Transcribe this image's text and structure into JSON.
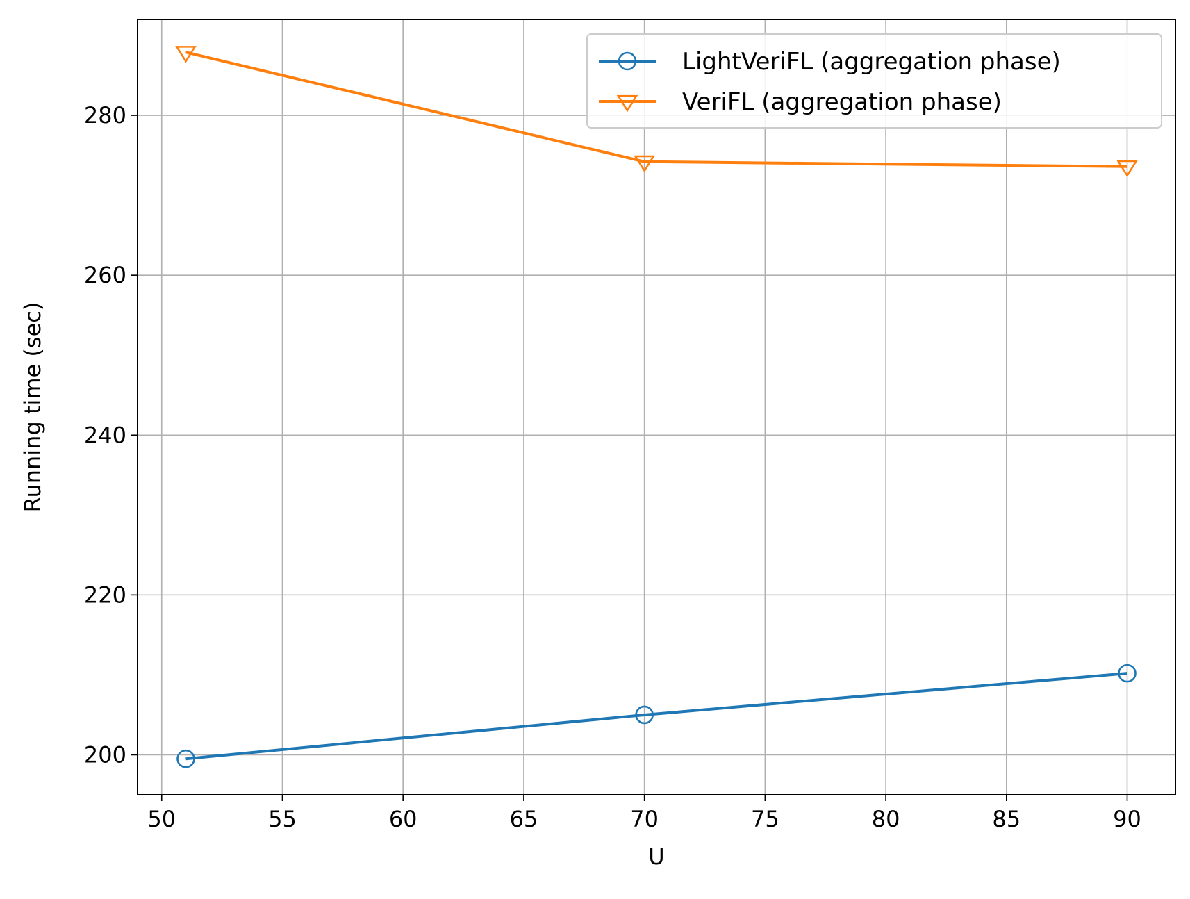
{
  "chart_data": {
    "type": "line",
    "title": "",
    "xlabel": "U",
    "ylabel": "Running time (sec)",
    "xlim": [
      49,
      92
    ],
    "ylim": [
      195,
      292
    ],
    "xticks": [
      50,
      55,
      60,
      65,
      70,
      75,
      80,
      85,
      90
    ],
    "yticks": [
      200,
      220,
      240,
      260,
      280
    ],
    "grid": true,
    "legend_position": "top-right",
    "series": [
      {
        "name": "LightVeriFL (aggregation phase)",
        "color": "#1f77b4",
        "marker": "circle-open",
        "x": [
          51,
          70,
          90
        ],
        "y": [
          199.5,
          205.0,
          210.2
        ]
      },
      {
        "name": "VeriFL (aggregation phase)",
        "color": "#ff7f0e",
        "marker": "triangle-down-open",
        "x": [
          51,
          70,
          90
        ],
        "y": [
          287.9,
          274.2,
          273.6
        ]
      }
    ]
  }
}
